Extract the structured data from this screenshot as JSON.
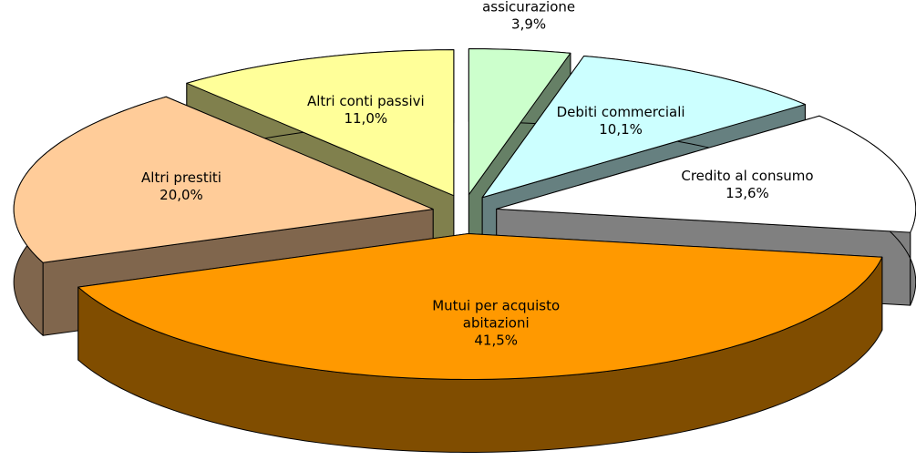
{
  "chart_data": {
    "type": "pie3d",
    "categories": [
      "Riserve tecniche di assicurazione",
      "Debiti commerciali",
      "Credito al consumo",
      "Mutui per acquisto abitazioni",
      "Altri prestiti",
      "Altri conti passivi"
    ],
    "values": [
      3.9,
      10.1,
      13.6,
      41.5,
      20.0,
      11.0
    ],
    "value_labels": [
      "3,9%",
      "10,1%",
      "13,6%",
      "41,5%",
      "20,0%",
      "11,0%"
    ],
    "colors": [
      "#ccffcc",
      "#ccffff",
      "#ffffff",
      "#ff9900",
      "#ffcc99",
      "#ffff99"
    ]
  }
}
